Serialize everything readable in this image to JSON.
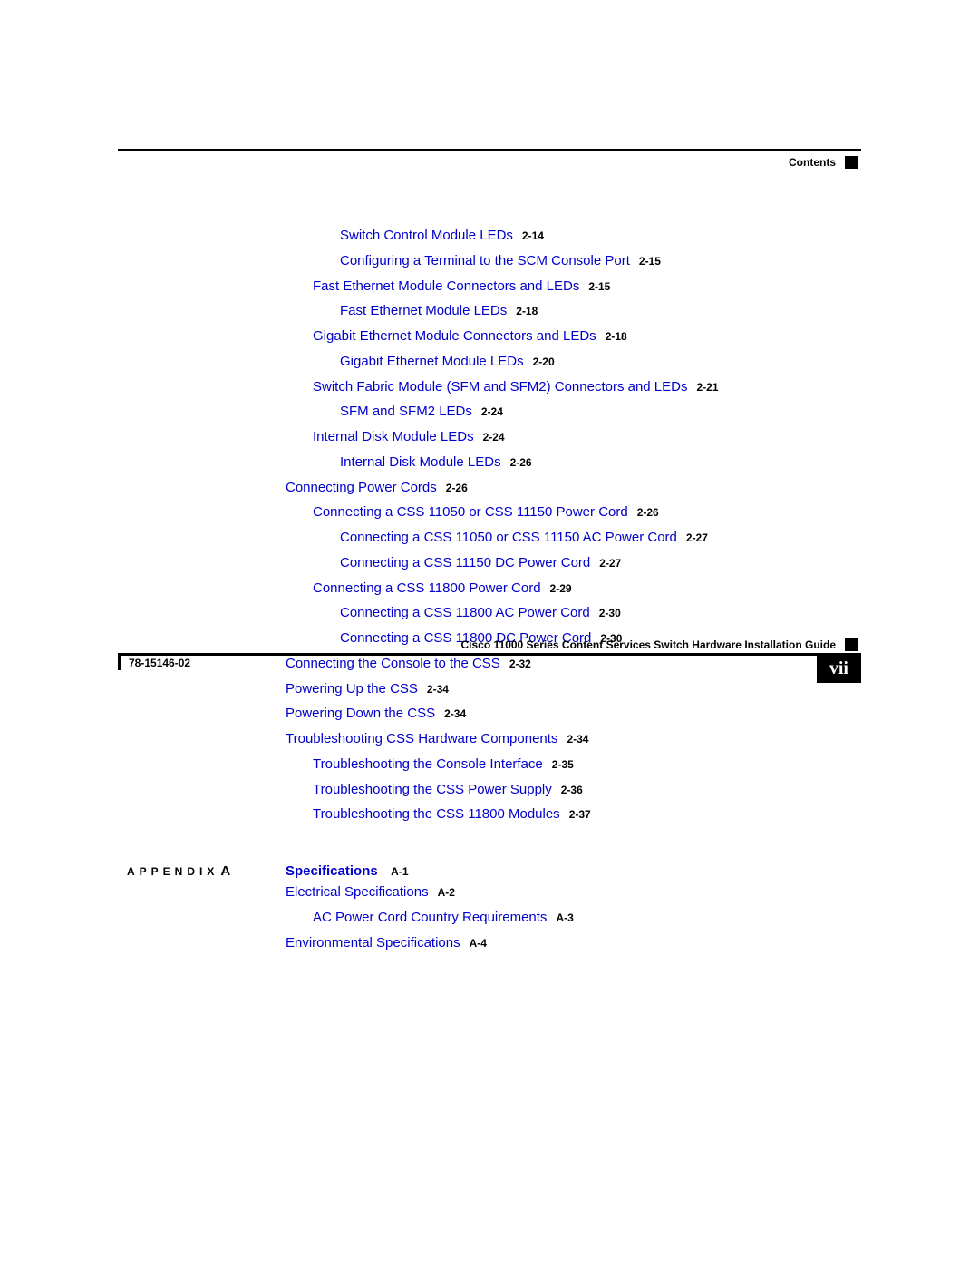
{
  "header": {
    "label": "Contents"
  },
  "toc": {
    "items": [
      {
        "text": "Switch Control Module LEDs",
        "page": "2-14",
        "indent": 2
      },
      {
        "text": "Configuring a Terminal to the SCM Console Port",
        "page": "2-15",
        "indent": 2
      },
      {
        "text": "Fast Ethernet Module Connectors and LEDs",
        "page": "2-15",
        "indent": 1
      },
      {
        "text": "Fast Ethernet Module LEDs",
        "page": "2-18",
        "indent": 2
      },
      {
        "text": "Gigabit Ethernet Module Connectors and LEDs",
        "page": "2-18",
        "indent": 1
      },
      {
        "text": "Gigabit Ethernet Module LEDs",
        "page": "2-20",
        "indent": 2
      },
      {
        "text": "Switch Fabric Module (SFM and SFM2) Connectors and LEDs",
        "page": "2-21",
        "indent": 1
      },
      {
        "text": "SFM and SFM2 LEDs",
        "page": "2-24",
        "indent": 2
      },
      {
        "text": "Internal Disk Module LEDs",
        "page": "2-24",
        "indent": 1
      },
      {
        "text": "Internal Disk Module LEDs",
        "page": "2-26",
        "indent": 2
      },
      {
        "text": "Connecting Power Cords",
        "page": "2-26",
        "indent": 0
      },
      {
        "text": "Connecting a CSS 11050 or CSS 11150 Power Cord",
        "page": "2-26",
        "indent": 1
      },
      {
        "text": "Connecting a CSS 11050 or CSS 11150 AC Power Cord",
        "page": "2-27",
        "indent": 2
      },
      {
        "text": "Connecting a CSS 11150 DC Power Cord",
        "page": "2-27",
        "indent": 2
      },
      {
        "text": "Connecting a CSS 11800 Power Cord",
        "page": "2-29",
        "indent": 1
      },
      {
        "text": "Connecting a CSS 11800 AC Power Cord",
        "page": "2-30",
        "indent": 2
      },
      {
        "text": "Connecting a CSS 11800 DC Power Cord",
        "page": "2-30",
        "indent": 2
      },
      {
        "text": "Connecting the Console to the CSS",
        "page": "2-32",
        "indent": 0
      },
      {
        "text": "Powering Up the CSS",
        "page": "2-34",
        "indent": 0
      },
      {
        "text": "Powering Down the CSS",
        "page": "2-34",
        "indent": 0
      },
      {
        "text": "Troubleshooting CSS Hardware Components",
        "page": "2-34",
        "indent": 0
      },
      {
        "text": "Troubleshooting the Console Interface",
        "page": "2-35",
        "indent": 1
      },
      {
        "text": "Troubleshooting the CSS Power Supply",
        "page": "2-36",
        "indent": 1
      },
      {
        "text": "Troubleshooting the CSS 11800 Modules",
        "page": "2-37",
        "indent": 1
      }
    ]
  },
  "appendix": {
    "label": "APPENDIX",
    "letter": "A",
    "title": "Specifications",
    "title_page": "A-1",
    "items": [
      {
        "text": "Electrical Specifications",
        "page": "A-2",
        "indent": 0
      },
      {
        "text": "AC Power Cord Country Requirements",
        "page": "A-3",
        "indent": 1
      },
      {
        "text": "Environmental Specifications",
        "page": "A-4",
        "indent": 0
      }
    ]
  },
  "footer": {
    "title": "Cisco 11000 Series Content Services Switch Hardware Installation Guide",
    "docnum": "78-15146-02",
    "page_number": "vii"
  },
  "colors": {
    "link": "#0000cc",
    "text": "#000000",
    "bg": "#ffffff"
  }
}
